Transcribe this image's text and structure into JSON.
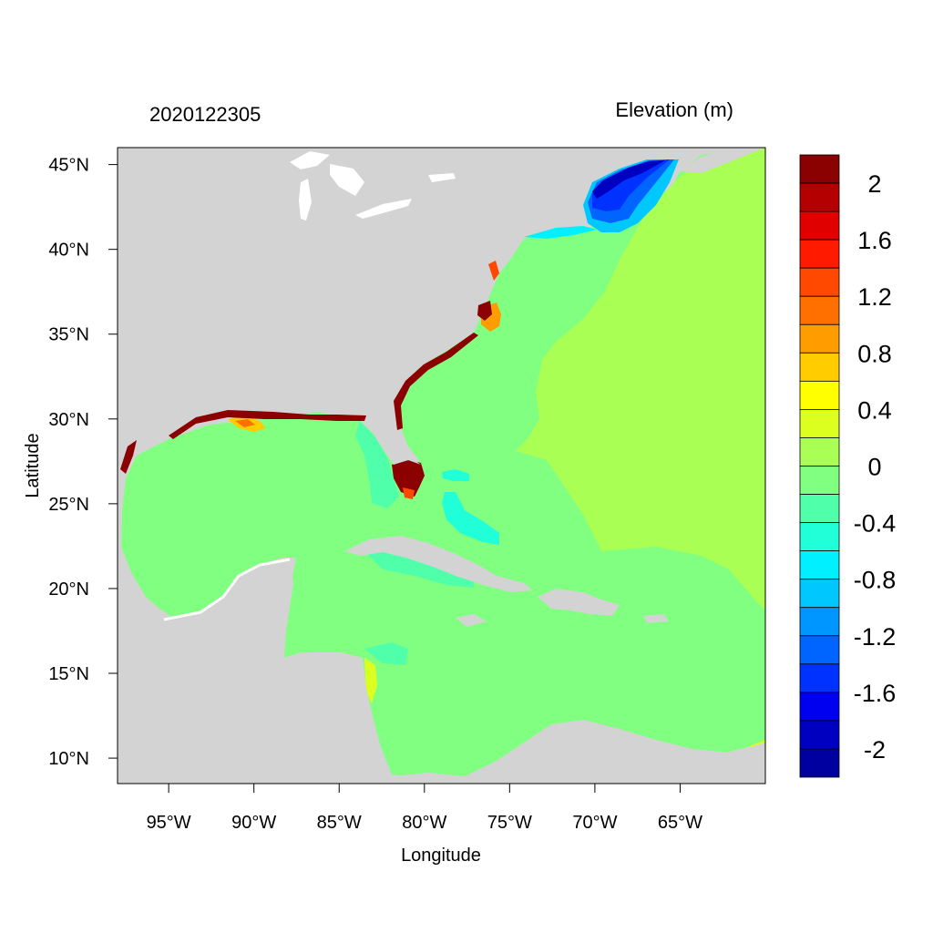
{
  "title_left": "2020122305",
  "title_right": "Elevation (m)",
  "xlabel": "Longitude",
  "ylabel": "Latitude",
  "colors": {
    "land": "#d3d3d3",
    "background": "#ffffff",
    "outline": "#000000"
  },
  "x_ticks": [
    "95°W",
    "90°W",
    "85°W",
    "80°W",
    "75°W",
    "70°W",
    "65°W"
  ],
  "y_ticks": [
    "45°N",
    "40°N",
    "35°N",
    "30°N",
    "25°N",
    "20°N",
    "15°N",
    "10°N"
  ],
  "colorbar": {
    "colors": [
      "#8b0000",
      "#b40000",
      "#e00000",
      "#ff1a00",
      "#ff4800",
      "#ff7000",
      "#ff9c00",
      "#ffcc00",
      "#ffff00",
      "#dcff20",
      "#aaff55",
      "#80ff80",
      "#50ffaa",
      "#20ffd8",
      "#00f0ff",
      "#00c8ff",
      "#0096ff",
      "#0064ff",
      "#0032ff",
      "#0000f0",
      "#0000c0",
      "#0000a0"
    ],
    "labels": [
      "2",
      "1.6",
      "1.2",
      "0.8",
      "0.4",
      "0",
      "-0.4",
      "-0.8",
      "-1.2",
      "-1.6",
      "-2"
    ]
  },
  "chart_data": {
    "type": "heatmap",
    "title": "2020122305",
    "subtitle": "Elevation (m)",
    "xlabel": "Longitude",
    "ylabel": "Latitude",
    "xlim": [
      -98,
      -60
    ],
    "ylim": [
      8.5,
      46
    ],
    "regions": [
      {
        "area": "Gulf of Mexico and Caribbean Sea",
        "elevation_m": 0
      },
      {
        "area": "Open Atlantic east of ~70°W",
        "elevation_m": 0.2
      },
      {
        "area": "Gulf of Maine / Massachusetts coast",
        "elevation_m": -1.8
      },
      {
        "area": "Southwest Florida coast",
        "elevation_m": 2.2
      },
      {
        "area": "Pamlico Sound, North Carolina",
        "elevation_m": 1.2
      },
      {
        "area": "Louisiana coast",
        "elevation_m": 0.8
      },
      {
        "area": "Bahamas banks",
        "elevation_m": -0.5
      }
    ]
  }
}
